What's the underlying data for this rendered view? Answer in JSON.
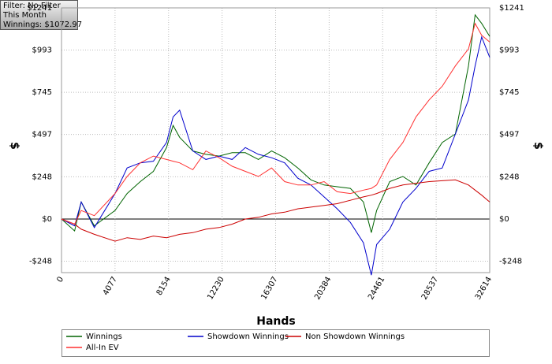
{
  "chart_data": {
    "type": "line",
    "info_box": [
      "Filter: No Filter",
      "This Month",
      "Winnings: $1072.97"
    ],
    "x_label": "Hands",
    "y_label": "$",
    "y2_label": "$",
    "x": [
      0,
      1000,
      1500,
      2500,
      4077,
      5000,
      6000,
      7000,
      8000,
      8500,
      9000,
      10000,
      11000,
      12000,
      13000,
      14000,
      15000,
      16000,
      17000,
      18000,
      19000,
      20000,
      21000,
      22000,
      23000,
      23600,
      24000,
      25000,
      26000,
      27000,
      28000,
      29000,
      30000,
      31000,
      31500,
      32000,
      32614
    ],
    "series": [
      {
        "name": "Winnings",
        "color": "#006400",
        "values": [
          0,
          -70,
          100,
          -40,
          50,
          150,
          220,
          280,
          420,
          550,
          480,
          400,
          380,
          370,
          390,
          390,
          350,
          400,
          360,
          300,
          230,
          200,
          190,
          180,
          100,
          -80,
          50,
          220,
          250,
          200,
          330,
          450,
          500,
          900,
          1200,
          1150,
          1073
        ]
      },
      {
        "name": "Showdown Winnings",
        "color": "#0000cc",
        "values": [
          0,
          -40,
          100,
          -50,
          150,
          300,
          330,
          340,
          450,
          600,
          640,
          400,
          350,
          370,
          350,
          420,
          380,
          360,
          330,
          240,
          200,
          130,
          60,
          -20,
          -140,
          -330,
          -150,
          -60,
          100,
          180,
          280,
          300,
          500,
          700,
          900,
          1070,
          950
        ]
      },
      {
        "name": "Non Showdown Winnings",
        "color": "#cc0000",
        "values": [
          0,
          -30,
          -60,
          -90,
          -130,
          -110,
          -120,
          -100,
          -110,
          -100,
          -90,
          -80,
          -60,
          -50,
          -30,
          0,
          10,
          30,
          40,
          60,
          70,
          80,
          90,
          110,
          130,
          140,
          150,
          180,
          200,
          210,
          220,
          225,
          230,
          200,
          170,
          140,
          100
        ]
      },
      {
        "name": "All-In EV",
        "color": "#ff3030",
        "values": [
          0,
          -30,
          50,
          20,
          150,
          250,
          330,
          370,
          350,
          340,
          330,
          290,
          400,
          360,
          310,
          280,
          250,
          300,
          220,
          200,
          200,
          220,
          160,
          150,
          170,
          180,
          200,
          350,
          450,
          600,
          700,
          780,
          900,
          1000,
          1150,
          1080,
          1040
        ]
      }
    ],
    "xlim": [
      0,
      32614
    ],
    "xticks": [
      0,
      4077,
      8154,
      12230,
      16307,
      20384,
      24461,
      28537,
      32614
    ],
    "ylim": [
      -315,
      1241
    ],
    "yticks": [
      {
        "value": -248,
        "label": "-$248"
      },
      {
        "value": 0,
        "label": "$0"
      },
      {
        "value": 248,
        "label": "$248"
      },
      {
        "value": 497,
        "label": "$497"
      },
      {
        "value": 745,
        "label": "$745"
      },
      {
        "value": 993,
        "label": "$993"
      },
      {
        "value": 1241,
        "label": "$1241"
      }
    ],
    "grid": true
  }
}
